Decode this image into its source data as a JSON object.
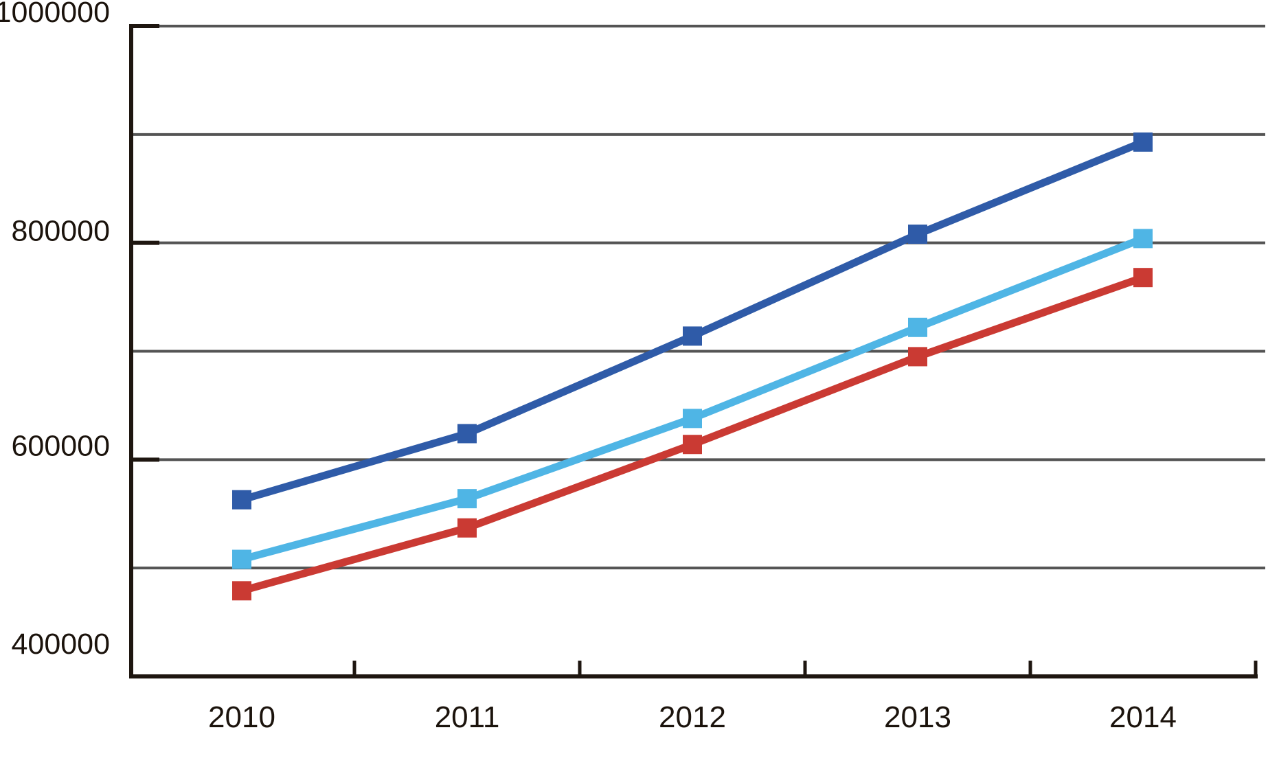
{
  "chart_data": {
    "type": "line",
    "title": "",
    "xlabel": "",
    "ylabel": "",
    "categories": [
      "2010",
      "2011",
      "2012",
      "2013",
      "2014"
    ],
    "series": [
      {
        "name": "dark-blue",
        "color": "#2f5ba8",
        "values": [
          563000,
          624000,
          714000,
          808000,
          893000
        ]
      },
      {
        "name": "light-blue",
        "color": "#4fb5e5",
        "values": [
          508000,
          564000,
          638000,
          722000,
          804000
        ]
      },
      {
        "name": "red",
        "color": "#ca3a33",
        "values": [
          479000,
          537000,
          614000,
          695000,
          768000
        ]
      }
    ],
    "ylim": [
      400000,
      1000000
    ],
    "gridline_step": 100000,
    "grid": "horizontal",
    "legend_position": "none",
    "marker_shape": "square",
    "y_axis_tick_labels": [
      {
        "label": "1000000",
        "value": 1000000
      },
      {
        "label": "800000",
        "value": 800000
      },
      {
        "label": "600000",
        "value": 600000
      },
      {
        "label": "400000",
        "value": 400000
      }
    ]
  },
  "colors": {
    "background": "#ffffff",
    "gridline": "#545454",
    "axis": "#1e1610",
    "text": "#1b130c"
  }
}
